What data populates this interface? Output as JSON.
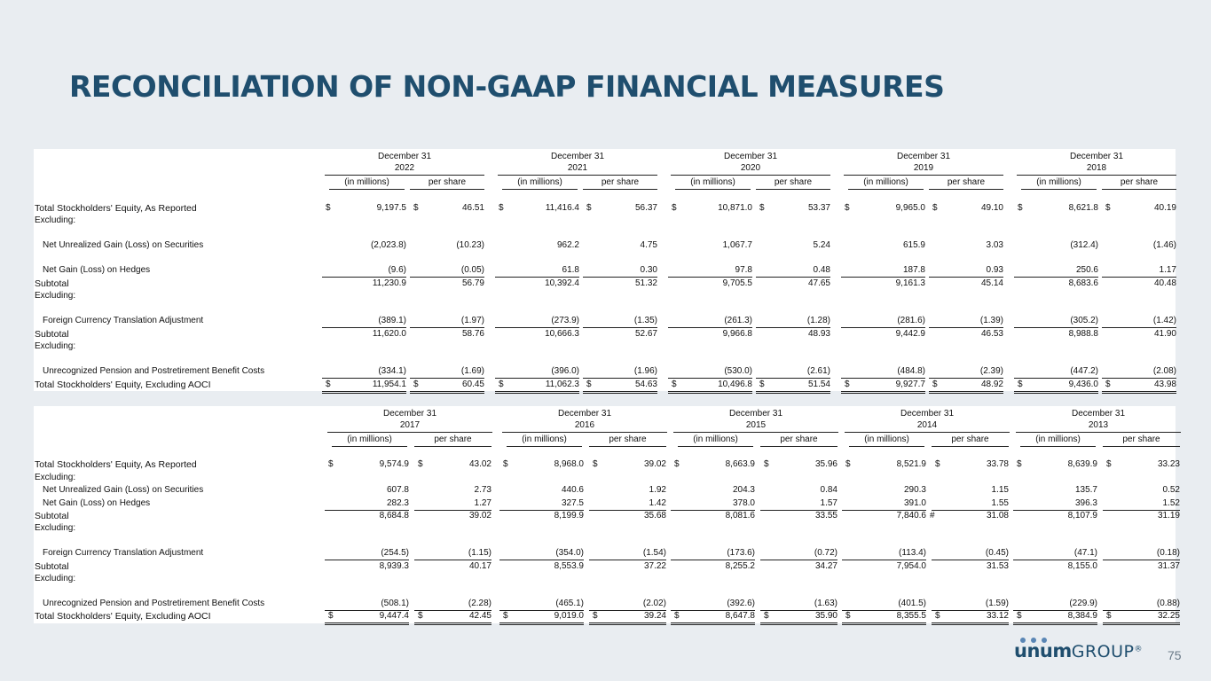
{
  "title": "RECONCILIATION OF NON-GAAP FINANCIAL MEASURES",
  "page_number": "75",
  "logo": {
    "part1": "unum",
    "part2": "GROUP",
    "mark": "®"
  },
  "table1": {
    "years": [
      "2022",
      "2021",
      "2020",
      "2019",
      "2018"
    ],
    "period_label": "December 31",
    "col_in_millions": "(in millions)",
    "col_per_share": "per share",
    "rows": [
      {
        "label": "Total Stockholders' Equity, As Reported",
        "bold": true,
        "dollar": true,
        "values": [
          "9,197.5",
          "46.51",
          "11,416.4",
          "56.37",
          "10,871.0",
          "53.37",
          "9,965.0",
          "49.10",
          "8,621.8",
          "40.19"
        ]
      },
      {
        "label": "Excluding:",
        "values": []
      },
      {
        "label": "Net Unrealized Gain (Loss) on Securities",
        "indent": true,
        "values": [
          "(2,023.8)",
          "(10.23)",
          "962.2",
          "4.75",
          "1,067.7",
          "5.24",
          "615.9",
          "3.03",
          "(312.4)",
          "(1.46)"
        ]
      },
      {
        "label": "Net Gain (Loss) on Hedges",
        "indent": true,
        "underline": true,
        "values": [
          "(9.6)",
          "(0.05)",
          "61.8",
          "0.30",
          "97.8",
          "0.48",
          "187.8",
          "0.93",
          "250.6",
          "1.17"
        ]
      },
      {
        "label": "Subtotal",
        "bold": true,
        "values": [
          "11,230.9",
          "56.79",
          "10,392.4",
          "51.32",
          "9,705.5",
          "47.65",
          "9,161.3",
          "45.14",
          "8,683.6",
          "40.48"
        ]
      },
      {
        "label": "Excluding:",
        "values": []
      },
      {
        "label": "Foreign Currency Translation Adjustment",
        "indent": true,
        "underline": true,
        "values": [
          "(389.1)",
          "(1.97)",
          "(273.9)",
          "(1.35)",
          "(261.3)",
          "(1.28)",
          "(281.6)",
          "(1.39)",
          "(305.2)",
          "(1.42)"
        ]
      },
      {
        "label": "Subtotal",
        "bold": true,
        "values": [
          "11,620.0",
          "58.76",
          "10,666.3",
          "52.67",
          "9,966.8",
          "48.93",
          "9,442.9",
          "46.53",
          "8,988.8",
          "41.90"
        ]
      },
      {
        "label": "Excluding:",
        "values": []
      },
      {
        "label": "Unrecognized Pension and Postretirement Benefit Costs",
        "indent": true,
        "underline": true,
        "values": [
          "(334.1)",
          "(1.69)",
          "(396.0)",
          "(1.96)",
          "(530.0)",
          "(2.61)",
          "(484.8)",
          "(2.39)",
          "(447.2)",
          "(2.08)"
        ]
      },
      {
        "label": "Total Stockholders' Equity, Excluding AOCI",
        "bold": true,
        "dollar": true,
        "double": true,
        "values": [
          "11,954.1",
          "60.45",
          "11,062.3",
          "54.63",
          "10,496.8",
          "51.54",
          "9,927.7",
          "48.92",
          "9,436.0",
          "43.98"
        ]
      }
    ]
  },
  "table2": {
    "years": [
      "2017",
      "2016",
      "2015",
      "2014",
      "2013"
    ],
    "period_label": "December 31",
    "col_in_millions": "(in millions)",
    "col_per_share": "per share",
    "rows": [
      {
        "label": "Total Stockholders' Equity, As Reported",
        "bold": true,
        "dollar": true,
        "values": [
          "9,574.9",
          "43.02",
          "8,968.0",
          "39.02",
          "8,663.9",
          "35.96",
          "8,521.9",
          "33.78",
          "8,639.9",
          "33.23"
        ]
      },
      {
        "label": "Excluding:",
        "values": []
      },
      {
        "label": "Net Unrealized Gain (Loss) on Securities",
        "indent": true,
        "values": [
          "607.8",
          "2.73",
          "440.6",
          "1.92",
          "204.3",
          "0.84",
          "290.3",
          "1.15",
          "135.7",
          "0.52"
        ]
      },
      {
        "label": "Net Gain (Loss) on Hedges",
        "indent": true,
        "underline": true,
        "values": [
          "282.3",
          "1.27",
          "327.5",
          "1.42",
          "378.0",
          "1.57",
          "391.0",
          "1.55",
          "396.3",
          "1.52"
        ]
      },
      {
        "label": "Subtotal",
        "bold": true,
        "values": [
          "8,684.8",
          "39.02",
          "8,199.9",
          "35.68",
          "8,081.6",
          "33.55",
          "7,840.6",
          "31.08",
          "8,107.9",
          "31.19"
        ],
        "marker_2014": "#"
      },
      {
        "label": "Excluding:",
        "values": []
      },
      {
        "label": "Foreign Currency Translation Adjustment",
        "indent": true,
        "underline": true,
        "values": [
          "(254.5)",
          "(1.15)",
          "(354.0)",
          "(1.54)",
          "(173.6)",
          "(0.72)",
          "(113.4)",
          "(0.45)",
          "(47.1)",
          "(0.18)"
        ]
      },
      {
        "label": "Subtotal",
        "bold": true,
        "values": [
          "8,939.3",
          "40.17",
          "8,553.9",
          "37.22",
          "8,255.2",
          "34.27",
          "7,954.0",
          "31.53",
          "8,155.0",
          "31.37"
        ]
      },
      {
        "label": "Excluding:",
        "values": []
      },
      {
        "label": "Unrecognized Pension and Postretirement Benefit Costs",
        "indent": true,
        "underline": true,
        "values": [
          "(508.1)",
          "(2.28)",
          "(465.1)",
          "(2.02)",
          "(392.6)",
          "(1.63)",
          "(401.5)",
          "(1.59)",
          "(229.9)",
          "(0.88)"
        ]
      },
      {
        "label": "Total Stockholders' Equity, Excluding AOCI",
        "bold": true,
        "dollar": true,
        "double": true,
        "values": [
          "9,447.4",
          "42.45",
          "9,019.0",
          "39.24",
          "8,647.8",
          "35.90",
          "8,355.5",
          "33.12",
          "8,384.9",
          "32.25"
        ]
      }
    ]
  }
}
